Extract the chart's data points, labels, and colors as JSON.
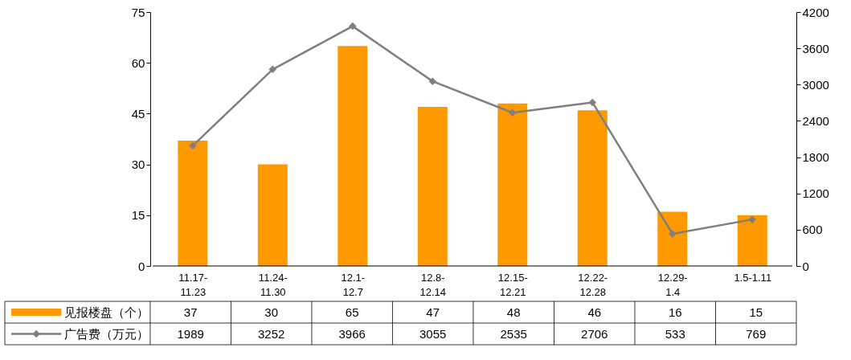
{
  "chart_data": {
    "type": "bar",
    "categories": [
      "11.17-11.23",
      "11.24-11.30",
      "12.1-12.7",
      "12.8-12.14",
      "12.15-12.21",
      "12.22-12.28",
      "12.29-1.4",
      "1.5-1.11"
    ],
    "series": [
      {
        "name": "见报楼盘（个）",
        "color": "#ff9900",
        "values": [
          37,
          30,
          65,
          47,
          48,
          46,
          16,
          15
        ]
      },
      {
        "name": "广告费（万元）",
        "type": "line",
        "axis": "y2",
        "color": "#7f7f7f",
        "values": [
          1989,
          3252,
          3966,
          3055,
          2535,
          2706,
          533,
          769
        ]
      }
    ],
    "ylim": [
      0,
      75
    ],
    "yticks": [
      0,
      15,
      30,
      45,
      60,
      75
    ],
    "y2lim": [
      0,
      4200
    ],
    "y2ticks": [
      0,
      600,
      1200,
      1800,
      2400,
      3000,
      3600,
      4200
    ],
    "marker": "diamond",
    "data_labels": true,
    "legend": "bottom left",
    "grid": false
  }
}
